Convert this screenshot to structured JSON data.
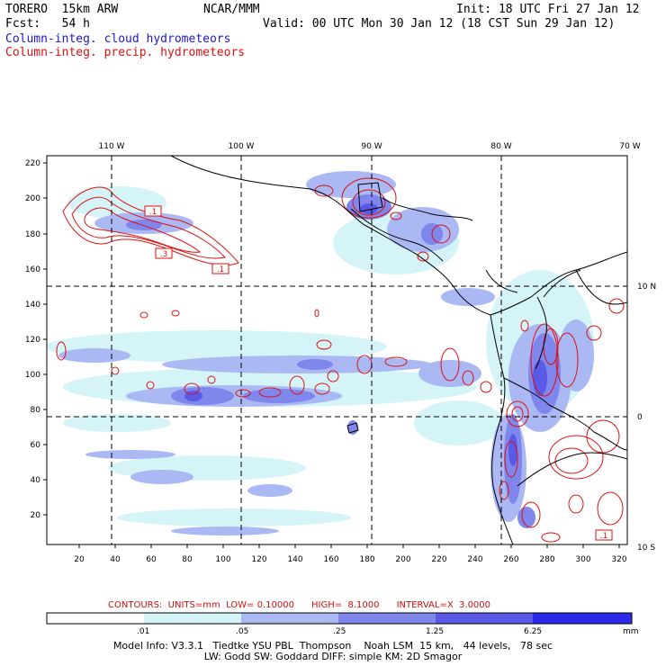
{
  "header": {
    "left1": "TORERO  15km ARW",
    "center1": "NCAR/MMM",
    "right1": "Init: 18 UTC Fri 27 Jan 12",
    "left2": "Fcst:   54 h",
    "right2": "Valid: 00 UTC Mon 30 Jan 12 (18 CST Sun 29 Jan 12)",
    "field_blue": "Column-integ. cloud hydrometeors",
    "field_red": "Column-integ. precip. hydrometeors"
  },
  "map": {
    "top_lon_labels": [
      "110 W",
      "100 W",
      "90 W",
      "80 W",
      "70 W"
    ],
    "right_lat_labels": [
      "10 N",
      "0",
      "10 S"
    ],
    "y_ticks": [
      "220",
      "200",
      "180",
      "160",
      "140",
      "120",
      "100",
      "80",
      "60",
      "40",
      "20"
    ],
    "x_ticks": [
      "20",
      "40",
      "60",
      "80",
      "100",
      "120",
      "140",
      "160",
      "180",
      "200",
      "220",
      "240",
      "260",
      "280",
      "300",
      "320"
    ],
    "box_labels": [
      ".1",
      ".3",
      ".1",
      ".1"
    ]
  },
  "contours_line": "CONTOURS:  UNITS=mm  LOW= 0.10000      HIGH=  8.1000      INTERVAL=X  3.0000",
  "colorbar": {
    "labels": [
      ".01",
      ".05",
      ".25",
      "1.25",
      "6.25"
    ],
    "unit": "mm",
    "colors": [
      "#ffffff",
      "#d4f4f8",
      "#aab8f4",
      "#7f86ec",
      "#5a5ae6",
      "#2a2ae8"
    ]
  },
  "model_info": {
    "line1": "Model Info: V3.3.1   Tiedtke YSU PBL  Thompson    Noah LSM  15 km,   44 levels,   78 sec",
    "line2": "LW: Godd SW: Goddard DIFF: simple KM: 2D Smagor"
  }
}
